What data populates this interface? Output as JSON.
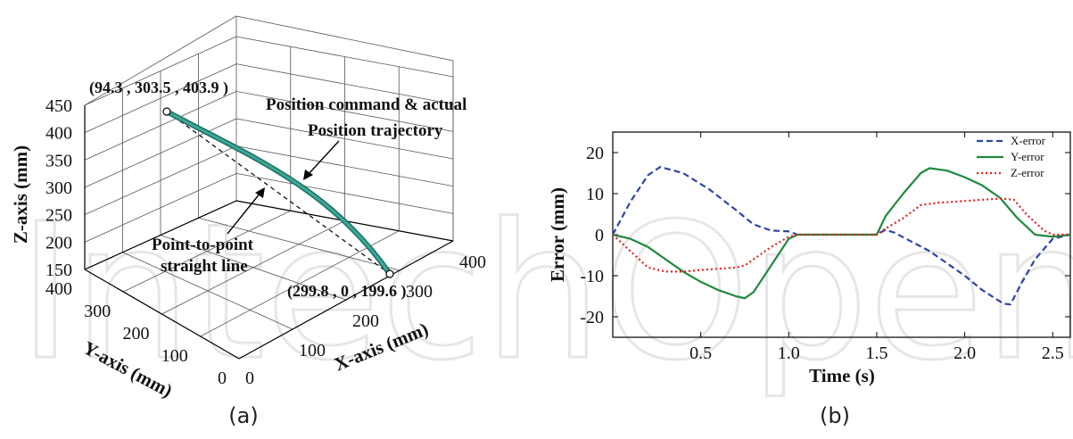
{
  "chart_data": [
    {
      "type": "line",
      "subtype": "3d-trajectory",
      "caption": "(a)",
      "xlabel": "X-axis (mm)",
      "ylabel": "Y-axis (mm)",
      "zlabel": "Z-axis (mm)",
      "xlim": [
        0,
        400
      ],
      "ylim": [
        0,
        400
      ],
      "zlim": [
        150,
        450
      ],
      "x_ticks": [
        "100",
        "200",
        "300",
        "400"
      ],
      "y_ticks": [
        "0",
        "100",
        "200",
        "300",
        "400"
      ],
      "z_ticks": [
        "150",
        "200",
        "250",
        "300",
        "350",
        "400",
        "450"
      ],
      "x_zero_label": "0",
      "start_point_label": "(94.3 , 303.5 , 403.9 )",
      "end_point_label": "(299.8 , 0 , 199.6 )",
      "start_point": [
        94.3,
        303.5,
        403.9
      ],
      "end_point": [
        299.8,
        0,
        199.6
      ],
      "annotations": {
        "trajectory_line1": "Position command & actual",
        "trajectory_line2": "Position trajectory",
        "straight_line1": "Point-to-point",
        "straight_line2": "straight line"
      },
      "colors": {
        "trajectory": "#2e8b7a",
        "straight": "#000000"
      }
    },
    {
      "type": "line",
      "caption": "(b)",
      "xlabel": "Time (s)",
      "ylabel": "Error (mm)",
      "xlim": [
        0,
        2.6
      ],
      "ylim": [
        -25,
        25
      ],
      "x_ticks": [
        0.5,
        1.0,
        1.5,
        2.0,
        2.5
      ],
      "x_tick_labels": [
        "0.5",
        "1.0",
        "1.5",
        "2.0",
        "2.5"
      ],
      "y_ticks": [
        20,
        10,
        0,
        -10,
        -20
      ],
      "y_tick_labels": [
        "20",
        "10",
        "0",
        "-10",
        "-20"
      ],
      "legend_position": "top-right",
      "series": [
        {
          "name": "X-error",
          "color": "#2f44a8",
          "dash": "dashed",
          "x": [
            0,
            0.1,
            0.2,
            0.27,
            0.4,
            0.55,
            0.7,
            0.8,
            0.9,
            1.0,
            1.05,
            1.5,
            1.55,
            1.6,
            1.8,
            2.0,
            2.1,
            2.22,
            2.26,
            2.32,
            2.4,
            2.5,
            2.6
          ],
          "y": [
            0,
            8,
            14.5,
            16.5,
            15,
            11,
            6,
            2.5,
            1,
            0.8,
            0,
            0,
            1.2,
            0.5,
            -4,
            -10,
            -13.5,
            -16.8,
            -17,
            -12,
            -6,
            -1,
            0
          ]
        },
        {
          "name": "Y-error",
          "color": "#1e8a3c",
          "dash": "solid",
          "x": [
            0,
            0.1,
            0.2,
            0.3,
            0.4,
            0.5,
            0.6,
            0.7,
            0.75,
            0.8,
            0.9,
            1.0,
            1.05,
            1.5,
            1.55,
            1.65,
            1.75,
            1.8,
            1.9,
            2.0,
            2.1,
            2.2,
            2.3,
            2.4,
            2.5,
            2.6
          ],
          "y": [
            0,
            -1,
            -3,
            -6,
            -9,
            -11.5,
            -13.5,
            -15,
            -15.5,
            -14,
            -7.5,
            -1,
            0,
            0,
            4.5,
            10,
            15,
            16.2,
            15.6,
            14,
            12,
            9,
            4,
            0,
            -0.5,
            0
          ]
        },
        {
          "name": "Z-error",
          "color": "#e02020",
          "dash": "dotted",
          "x": [
            0,
            0.1,
            0.2,
            0.3,
            0.4,
            0.5,
            0.6,
            0.7,
            0.75,
            0.8,
            0.9,
            1.0,
            1.05,
            1.5,
            1.55,
            1.65,
            1.75,
            1.85,
            2.0,
            2.1,
            2.2,
            2.28,
            2.35,
            2.45,
            2.5,
            2.6
          ],
          "y": [
            0,
            -4,
            -8,
            -9,
            -9,
            -8.6,
            -8.3,
            -8,
            -7.5,
            -6,
            -3,
            -0.5,
            0,
            0,
            1.5,
            4,
            7.2,
            7.8,
            8.2,
            8.5,
            8.8,
            8.5,
            5,
            1,
            0,
            0
          ]
        }
      ]
    }
  ]
}
